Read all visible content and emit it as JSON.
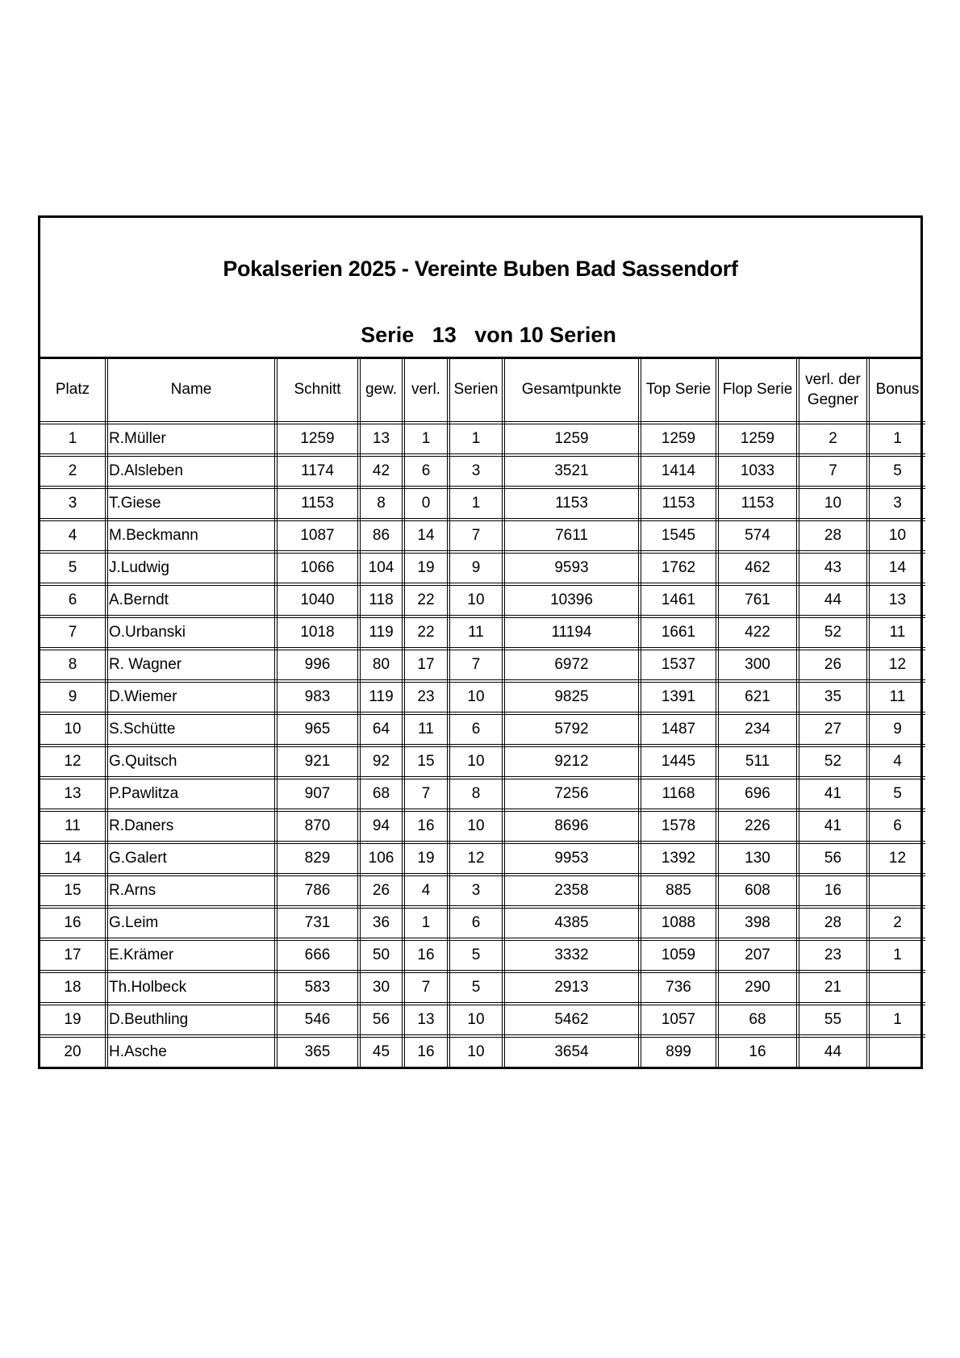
{
  "title": "Pokalserien 2025 - Vereinte Buben Bad Sassendorf",
  "subtitle": "Serie   13   von 10 Serien",
  "columns": [
    "Platz",
    "Name",
    "Schnitt",
    "gew.",
    "verl.",
    "Serien",
    "Gesamtpunkte",
    "Top Serie",
    "Flop Serie",
    "verl. der Gegner",
    "Bonus"
  ],
  "rows": [
    [
      "1",
      "R.Müller",
      "1259",
      "13",
      "1",
      "1",
      "1259",
      "1259",
      "1259",
      "2",
      "1"
    ],
    [
      "2",
      "D.Alsleben",
      "1174",
      "42",
      "6",
      "3",
      "3521",
      "1414",
      "1033",
      "7",
      "5"
    ],
    [
      "3",
      "T.Giese",
      "1153",
      "8",
      "0",
      "1",
      "1153",
      "1153",
      "1153",
      "10",
      "3"
    ],
    [
      "4",
      "M.Beckmann",
      "1087",
      "86",
      "14",
      "7",
      "7611",
      "1545",
      "574",
      "28",
      "10"
    ],
    [
      "5",
      "J.Ludwig",
      "1066",
      "104",
      "19",
      "9",
      "9593",
      "1762",
      "462",
      "43",
      "14"
    ],
    [
      "6",
      "A.Berndt",
      "1040",
      "118",
      "22",
      "10",
      "10396",
      "1461",
      "761",
      "44",
      "13"
    ],
    [
      "7",
      "O.Urbanski",
      "1018",
      "119",
      "22",
      "11",
      "11194",
      "1661",
      "422",
      "52",
      "11"
    ],
    [
      "8",
      "R. Wagner",
      "996",
      "80",
      "17",
      "7",
      "6972",
      "1537",
      "300",
      "26",
      "12"
    ],
    [
      "9",
      "D.Wiemer",
      "983",
      "119",
      "23",
      "10",
      "9825",
      "1391",
      "621",
      "35",
      "11"
    ],
    [
      "10",
      "S.Schütte",
      "965",
      "64",
      "11",
      "6",
      "5792",
      "1487",
      "234",
      "27",
      "9"
    ],
    [
      "12",
      "G.Quitsch",
      "921",
      "92",
      "15",
      "10",
      "9212",
      "1445",
      "511",
      "52",
      "4"
    ],
    [
      "13",
      "P.Pawlitza",
      "907",
      "68",
      "7",
      "8",
      "7256",
      "1168",
      "696",
      "41",
      "5"
    ],
    [
      "11",
      "R.Daners",
      "870",
      "94",
      "16",
      "10",
      "8696",
      "1578",
      "226",
      "41",
      "6"
    ],
    [
      "14",
      "G.Galert",
      "829",
      "106",
      "19",
      "12",
      "9953",
      "1392",
      "130",
      "56",
      "12"
    ],
    [
      "15",
      "R.Arns",
      "786",
      "26",
      "4",
      "3",
      "2358",
      "885",
      "608",
      "16",
      ""
    ],
    [
      "16",
      "G.Leim",
      "731",
      "36",
      "1",
      "6",
      "4385",
      "1088",
      "398",
      "28",
      "2"
    ],
    [
      "17",
      "E.Krämer",
      "666",
      "50",
      "16",
      "5",
      "3332",
      "1059",
      "207",
      "23",
      "1"
    ],
    [
      "18",
      "Th.Holbeck",
      "583",
      "30",
      "7",
      "5",
      "2913",
      "736",
      "290",
      "21",
      ""
    ],
    [
      "19",
      "D.Beuthling",
      "546",
      "56",
      "13",
      "10",
      "5462",
      "1057",
      "68",
      "55",
      "1"
    ],
    [
      "20",
      "H.Asche",
      "365",
      "45",
      "16",
      "10",
      "3654",
      "899",
      "16",
      "44",
      ""
    ]
  ]
}
